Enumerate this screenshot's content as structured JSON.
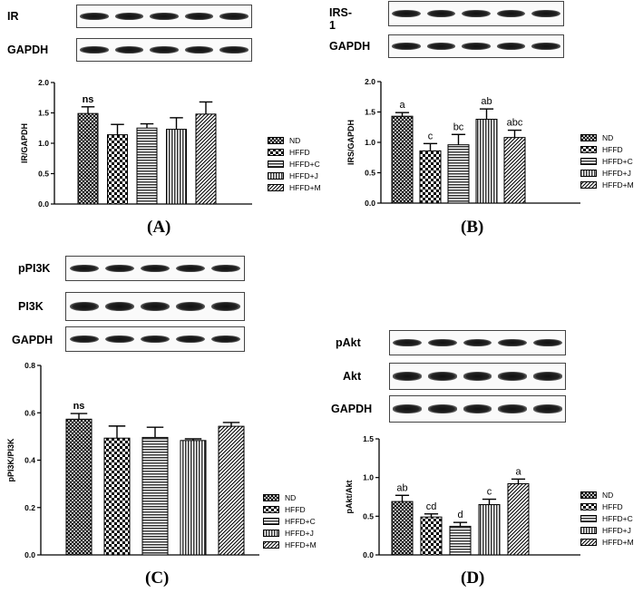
{
  "panels": [
    {
      "letter": "(A)",
      "blots": [
        "IR",
        "GAPDH"
      ],
      "chart_data": {
        "type": "bar",
        "categories": [
          "ND",
          "HFFD",
          "HFFD+C",
          "HFFD+J",
          "HFFD+M"
        ],
        "values": [
          1.49,
          1.14,
          1.25,
          1.23,
          1.48
        ],
        "errors": [
          0.11,
          0.17,
          0.07,
          0.19,
          0.2
        ],
        "bar_labels": [
          "ns",
          "",
          "",
          "",
          ""
        ],
        "ylabel": "IR/GAPDH",
        "ylim": [
          0,
          2.0
        ],
        "yticks": [
          "0.0",
          "0.5",
          "1.0",
          "1.5",
          "2.0"
        ],
        "legend": [
          "ND",
          "HFFD",
          "HFFD+C",
          "HFFD+J",
          "HFFD+M"
        ],
        "legend_position": "right"
      }
    },
    {
      "letter": "(B)",
      "blots": [
        "IRS-1",
        "GAPDH"
      ],
      "chart_data": {
        "type": "bar",
        "categories": [
          "ND",
          "HFFD",
          "HFFD+C",
          "HFFD+J",
          "HFFD+M"
        ],
        "values": [
          1.43,
          0.86,
          0.96,
          1.38,
          1.08
        ],
        "errors": [
          0.06,
          0.12,
          0.17,
          0.17,
          0.12
        ],
        "bar_labels": [
          "a",
          "c",
          "bc",
          "ab",
          "abc"
        ],
        "ylabel": "IRS/GAPDH",
        "ylim": [
          0,
          2.0
        ],
        "yticks": [
          "0.0",
          "0.5",
          "1.0",
          "1.5",
          "2.0"
        ],
        "legend": [
          "ND",
          "HFFD",
          "HFFD+C",
          "HFFD+J",
          "HFFD+M"
        ],
        "legend_position": "right"
      }
    },
    {
      "letter": "(C)",
      "blots": [
        "pPI3K",
        "PI3K",
        "GAPDH"
      ],
      "chart_data": {
        "type": "bar",
        "categories": [
          "ND",
          "HFFD",
          "HFFD+C",
          "HFFD+J",
          "HFFD+M"
        ],
        "values": [
          0.573,
          0.493,
          0.496,
          0.483,
          0.543
        ],
        "errors": [
          0.024,
          0.051,
          0.043,
          0.007,
          0.016
        ],
        "bar_labels": [
          "ns",
          "",
          "",
          "",
          ""
        ],
        "ylabel": "pPI3K/PI3K",
        "ylim": [
          0,
          0.8
        ],
        "yticks": [
          "0.0",
          "0.2",
          "0.4",
          "0.6",
          "0.8"
        ],
        "legend": [
          "ND",
          "HFFD",
          "HFFD+C",
          "HFFD+J",
          "HFFD+M"
        ],
        "legend_position": "bottom-right"
      }
    },
    {
      "letter": "(D)",
      "blots": [
        "pAkt",
        "Akt",
        "GAPDH"
      ],
      "chart_data": {
        "type": "bar",
        "categories": [
          "ND",
          "HFFD",
          "HFFD+C",
          "HFFD+J",
          "HFFD+M"
        ],
        "values": [
          0.69,
          0.49,
          0.37,
          0.65,
          0.92
        ],
        "errors": [
          0.08,
          0.04,
          0.05,
          0.07,
          0.06
        ],
        "bar_labels": [
          "ab",
          "cd",
          "d",
          "c",
          "a"
        ],
        "ylabel": "pAkt/Akt",
        "ylim": [
          0,
          1.5
        ],
        "yticks": [
          "0.0",
          "0.5",
          "1.0",
          "1.5"
        ],
        "legend": [
          "ND",
          "HFFD",
          "HFFD+C",
          "HFFD+J",
          "HFFD+M"
        ],
        "legend_position": "right"
      }
    }
  ],
  "patterns": [
    "cross-hatch",
    "checker",
    "horizontal-lines",
    "vertical-lines",
    "diagonal-lines"
  ]
}
